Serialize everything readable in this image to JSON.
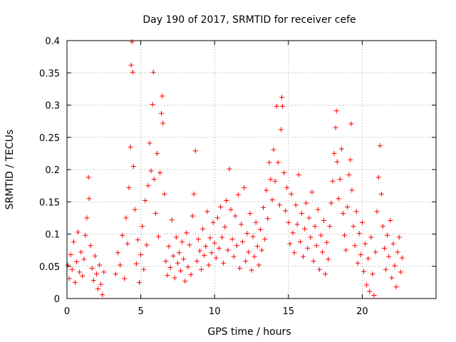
{
  "chart_data": {
    "type": "scatter",
    "title": "Day 190 of 2017, SRMTID for receiver cefe",
    "xlabel": "GPS time / hours",
    "ylabel": "SRMTID / TECUs",
    "xlim": [
      0,
      25
    ],
    "ylim": [
      0,
      0.4
    ],
    "xticks": [
      0,
      5,
      10,
      15,
      20
    ],
    "xtick_labels": [
      "0",
      "5",
      "10",
      "15",
      "20"
    ],
    "yticks": [
      0,
      0.05,
      0.1,
      0.15,
      0.2,
      0.25,
      0.3,
      0.35,
      0.4
    ],
    "ytick_labels": [
      "0",
      "0.05",
      "0.1",
      "0.15",
      "0.2",
      "0.25",
      "0.3",
      "0.35",
      "0.4"
    ],
    "grid": true,
    "marker": "+",
    "series": [
      {
        "color": "#ff0000",
        "points": [
          [
            0.05,
            0.052
          ],
          [
            0.15,
            0.031
          ],
          [
            0.25,
            0.068
          ],
          [
            0.35,
            0.045
          ],
          [
            0.45,
            0.088
          ],
          [
            0.55,
            0.025
          ],
          [
            0.65,
            0.057
          ],
          [
            0.75,
            0.103
          ],
          [
            0.85,
            0.041
          ],
          [
            0.95,
            0.072
          ],
          [
            1.05,
            0.035
          ],
          [
            1.15,
            0.061
          ],
          [
            1.25,
            0.098
          ],
          [
            1.35,
            0.125
          ],
          [
            1.45,
            0.188
          ],
          [
            1.5,
            0.155
          ],
          [
            1.6,
            0.082
          ],
          [
            1.7,
            0.047
          ],
          [
            1.8,
            0.028
          ],
          [
            1.9,
            0.066
          ],
          [
            2.0,
            0.038
          ],
          [
            2.1,
            0.015
          ],
          [
            2.2,
            0.052
          ],
          [
            2.3,
            0.022
          ],
          [
            2.4,
            0.006
          ],
          [
            2.5,
            0.041
          ],
          [
            3.3,
            0.038
          ],
          [
            3.45,
            0.071
          ],
          [
            3.6,
            0.052
          ],
          [
            3.75,
            0.098
          ],
          [
            3.9,
            0.031
          ],
          [
            4.0,
            0.125
          ],
          [
            4.1,
            0.085
          ],
          [
            4.2,
            0.172
          ],
          [
            4.3,
            0.235
          ],
          [
            4.35,
            0.362
          ],
          [
            4.4,
            0.398
          ],
          [
            4.45,
            0.351
          ],
          [
            4.5,
            0.205
          ],
          [
            4.6,
            0.138
          ],
          [
            4.7,
            0.054
          ],
          [
            4.8,
            0.091
          ],
          [
            4.9,
            0.025
          ],
          [
            5.0,
            0.068
          ],
          [
            5.1,
            0.112
          ],
          [
            5.2,
            0.045
          ],
          [
            5.3,
            0.152
          ],
          [
            5.4,
            0.083
          ],
          [
            5.5,
            0.175
          ],
          [
            5.6,
            0.241
          ],
          [
            5.7,
            0.198
          ],
          [
            5.8,
            0.301
          ],
          [
            5.85,
            0.351
          ],
          [
            5.9,
            0.185
          ],
          [
            6.0,
            0.132
          ],
          [
            6.1,
            0.225
          ],
          [
            6.2,
            0.096
          ],
          [
            6.3,
            0.195
          ],
          [
            6.4,
            0.287
          ],
          [
            6.45,
            0.314
          ],
          [
            6.5,
            0.272
          ],
          [
            6.6,
            0.162
          ],
          [
            6.7,
            0.058
          ],
          [
            6.8,
            0.036
          ],
          [
            6.9,
            0.081
          ],
          [
            7.0,
            0.048
          ],
          [
            7.1,
            0.122
          ],
          [
            7.2,
            0.066
          ],
          [
            7.3,
            0.032
          ],
          [
            7.4,
            0.095
          ],
          [
            7.5,
            0.055
          ],
          [
            7.6,
            0.071
          ],
          [
            7.7,
            0.043
          ],
          [
            7.8,
            0.088
          ],
          [
            7.9,
            0.061
          ],
          [
            8.0,
            0.027
          ],
          [
            8.1,
            0.102
          ],
          [
            8.2,
            0.049
          ],
          [
            8.3,
            0.083
          ],
          [
            8.4,
            0.037
          ],
          [
            8.5,
            0.128
          ],
          [
            8.6,
            0.162
          ],
          [
            8.7,
            0.229
          ],
          [
            8.8,
            0.058
          ],
          [
            8.9,
            0.092
          ],
          [
            9.0,
            0.074
          ],
          [
            9.1,
            0.045
          ],
          [
            9.2,
            0.108
          ],
          [
            9.3,
            0.067
          ],
          [
            9.4,
            0.081
          ],
          [
            9.5,
            0.135
          ],
          [
            9.6,
            0.052
          ],
          [
            9.7,
            0.094
          ],
          [
            9.8,
            0.071
          ],
          [
            9.9,
            0.118
          ],
          [
            10.0,
            0.086
          ],
          [
            10.1,
            0.063
          ],
          [
            10.2,
            0.125
          ],
          [
            10.3,
            0.078
          ],
          [
            10.4,
            0.142
          ],
          [
            10.5,
            0.095
          ],
          [
            10.6,
            0.055
          ],
          [
            10.7,
            0.111
          ],
          [
            10.8,
            0.152
          ],
          [
            10.9,
            0.075
          ],
          [
            11.0,
            0.201
          ],
          [
            11.1,
            0.138
          ],
          [
            11.2,
            0.092
          ],
          [
            11.3,
            0.065
          ],
          [
            11.4,
            0.128
          ],
          [
            11.5,
            0.082
          ],
          [
            11.6,
            0.161
          ],
          [
            11.7,
            0.047
          ],
          [
            11.8,
            0.115
          ],
          [
            11.9,
            0.088
          ],
          [
            12.0,
            0.172
          ],
          [
            12.1,
            0.058
          ],
          [
            12.2,
            0.101
          ],
          [
            12.3,
            0.072
          ],
          [
            12.4,
            0.132
          ],
          [
            12.5,
            0.044
          ],
          [
            12.6,
            0.096
          ],
          [
            12.7,
            0.065
          ],
          [
            12.8,
            0.118
          ],
          [
            12.9,
            0.081
          ],
          [
            13.0,
            0.052
          ],
          [
            13.1,
            0.107
          ],
          [
            13.2,
            0.075
          ],
          [
            13.3,
            0.141
          ],
          [
            13.4,
            0.092
          ],
          [
            13.5,
            0.168
          ],
          [
            13.6,
            0.124
          ],
          [
            13.7,
            0.211
          ],
          [
            13.8,
            0.185
          ],
          [
            13.9,
            0.153
          ],
          [
            14.0,
            0.231
          ],
          [
            14.1,
            0.182
          ],
          [
            14.2,
            0.298
          ],
          [
            14.3,
            0.211
          ],
          [
            14.4,
            0.145
          ],
          [
            14.5,
            0.262
          ],
          [
            14.55,
            0.312
          ],
          [
            14.6,
            0.298
          ],
          [
            14.7,
            0.195
          ],
          [
            14.8,
            0.136
          ],
          [
            14.9,
            0.172
          ],
          [
            15.0,
            0.118
          ],
          [
            15.1,
            0.085
          ],
          [
            15.2,
            0.162
          ],
          [
            15.3,
            0.102
          ],
          [
            15.4,
            0.071
          ],
          [
            15.5,
            0.145
          ],
          [
            15.6,
            0.115
          ],
          [
            15.7,
            0.192
          ],
          [
            15.8,
            0.088
          ],
          [
            15.9,
            0.132
          ],
          [
            16.0,
            0.065
          ],
          [
            16.1,
            0.108
          ],
          [
            16.2,
            0.148
          ],
          [
            16.3,
            0.078
          ],
          [
            16.4,
            0.125
          ],
          [
            16.5,
            0.095
          ],
          [
            16.6,
            0.165
          ],
          [
            16.7,
            0.058
          ],
          [
            16.8,
            0.112
          ],
          [
            16.9,
            0.082
          ],
          [
            17.0,
            0.138
          ],
          [
            17.1,
            0.045
          ],
          [
            17.2,
            0.098
          ],
          [
            17.3,
            0.072
          ],
          [
            17.4,
            0.121
          ],
          [
            17.5,
            0.038
          ],
          [
            17.6,
            0.087
          ],
          [
            17.7,
            0.061
          ],
          [
            17.8,
            0.112
          ],
          [
            17.9,
            0.148
          ],
          [
            18.0,
            0.182
          ],
          [
            18.1,
            0.225
          ],
          [
            18.2,
            0.265
          ],
          [
            18.25,
            0.291
          ],
          [
            18.3,
            0.212
          ],
          [
            18.4,
            0.155
          ],
          [
            18.5,
            0.185
          ],
          [
            18.6,
            0.232
          ],
          [
            18.7,
            0.132
          ],
          [
            18.8,
            0.098
          ],
          [
            18.9,
            0.075
          ],
          [
            19.0,
            0.142
          ],
          [
            19.1,
            0.192
          ],
          [
            19.2,
            0.215
          ],
          [
            19.25,
            0.271
          ],
          [
            19.3,
            0.168
          ],
          [
            19.4,
            0.112
          ],
          [
            19.5,
            0.082
          ],
          [
            19.6,
            0.135
          ],
          [
            19.7,
            0.055
          ],
          [
            19.8,
            0.101
          ],
          [
            19.9,
            0.068
          ],
          [
            20.0,
            0.118
          ],
          [
            20.1,
            0.042
          ],
          [
            20.2,
            0.085
          ],
          [
            20.3,
            0.021
          ],
          [
            20.4,
            0.062
          ],
          [
            20.5,
            0.011
          ],
          [
            20.6,
            0.095
          ],
          [
            20.7,
            0.038
          ],
          [
            20.8,
            0.005
          ],
          [
            20.9,
            0.072
          ],
          [
            21.0,
            0.135
          ],
          [
            21.1,
            0.188
          ],
          [
            21.2,
            0.237
          ],
          [
            21.3,
            0.162
          ],
          [
            21.4,
            0.112
          ],
          [
            21.5,
            0.078
          ],
          [
            21.6,
            0.045
          ],
          [
            21.7,
            0.098
          ],
          [
            21.8,
            0.065
          ],
          [
            21.9,
            0.121
          ],
          [
            22.0,
            0.032
          ],
          [
            22.1,
            0.085
          ],
          [
            22.2,
            0.051
          ],
          [
            22.3,
            0.018
          ],
          [
            22.4,
            0.072
          ],
          [
            22.5,
            0.095
          ],
          [
            22.6,
            0.041
          ],
          [
            22.7,
            0.063
          ]
        ]
      }
    ]
  }
}
